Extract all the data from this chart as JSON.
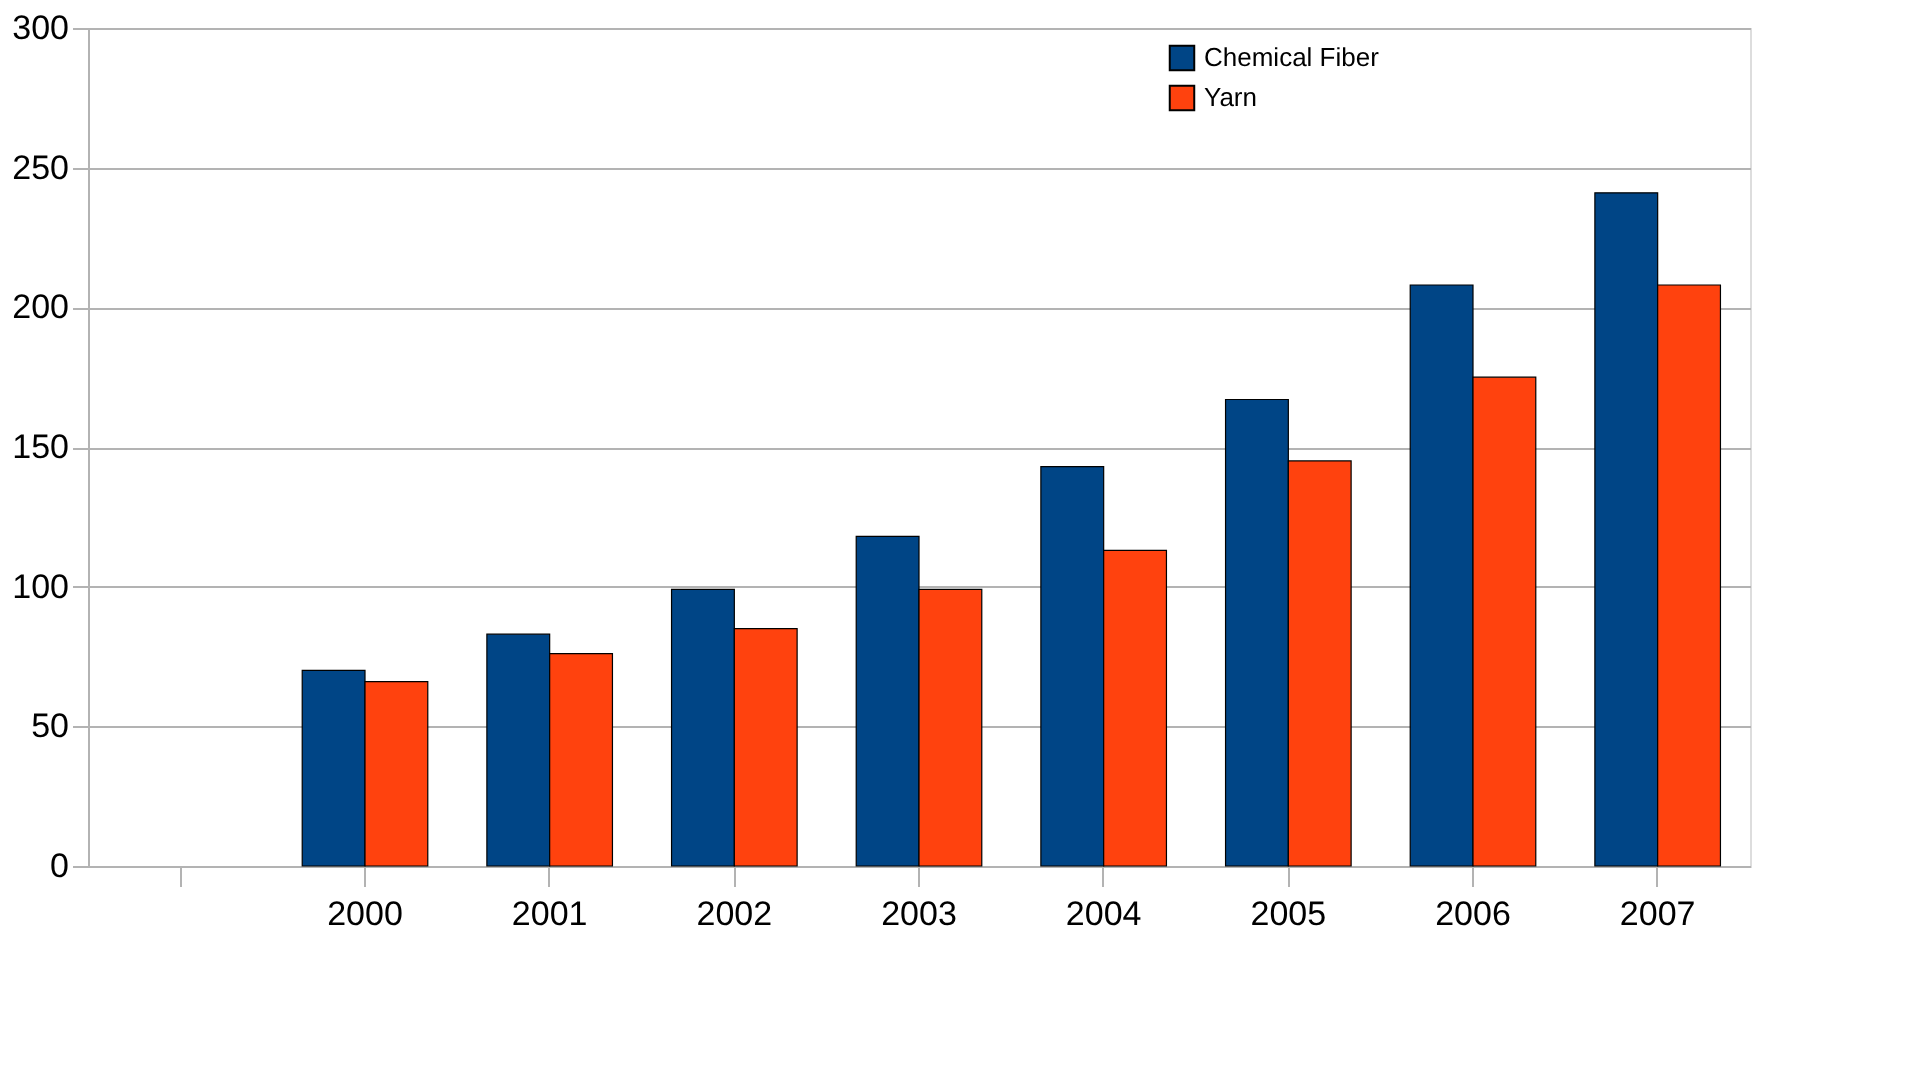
{
  "chart_data": {
    "type": "bar",
    "categories": [
      null,
      "2000",
      "2001",
      "2002",
      "2003",
      "2004",
      "2005",
      "2006",
      "2007"
    ],
    "series": [
      {
        "name": "Chemical Fiber",
        "color": "#004586",
        "values": [
          null,
          70,
          83,
          99,
          118,
          143,
          167,
          208,
          241
        ]
      },
      {
        "name": "Yarn",
        "color": "#ff420e",
        "values": [
          null,
          66,
          76,
          85,
          99,
          113,
          145,
          175,
          208
        ]
      }
    ],
    "ylim": [
      0,
      300
    ],
    "yticks": [
      0,
      50,
      100,
      150,
      200,
      250,
      300
    ],
    "grid": "y",
    "legend": "top right"
  }
}
